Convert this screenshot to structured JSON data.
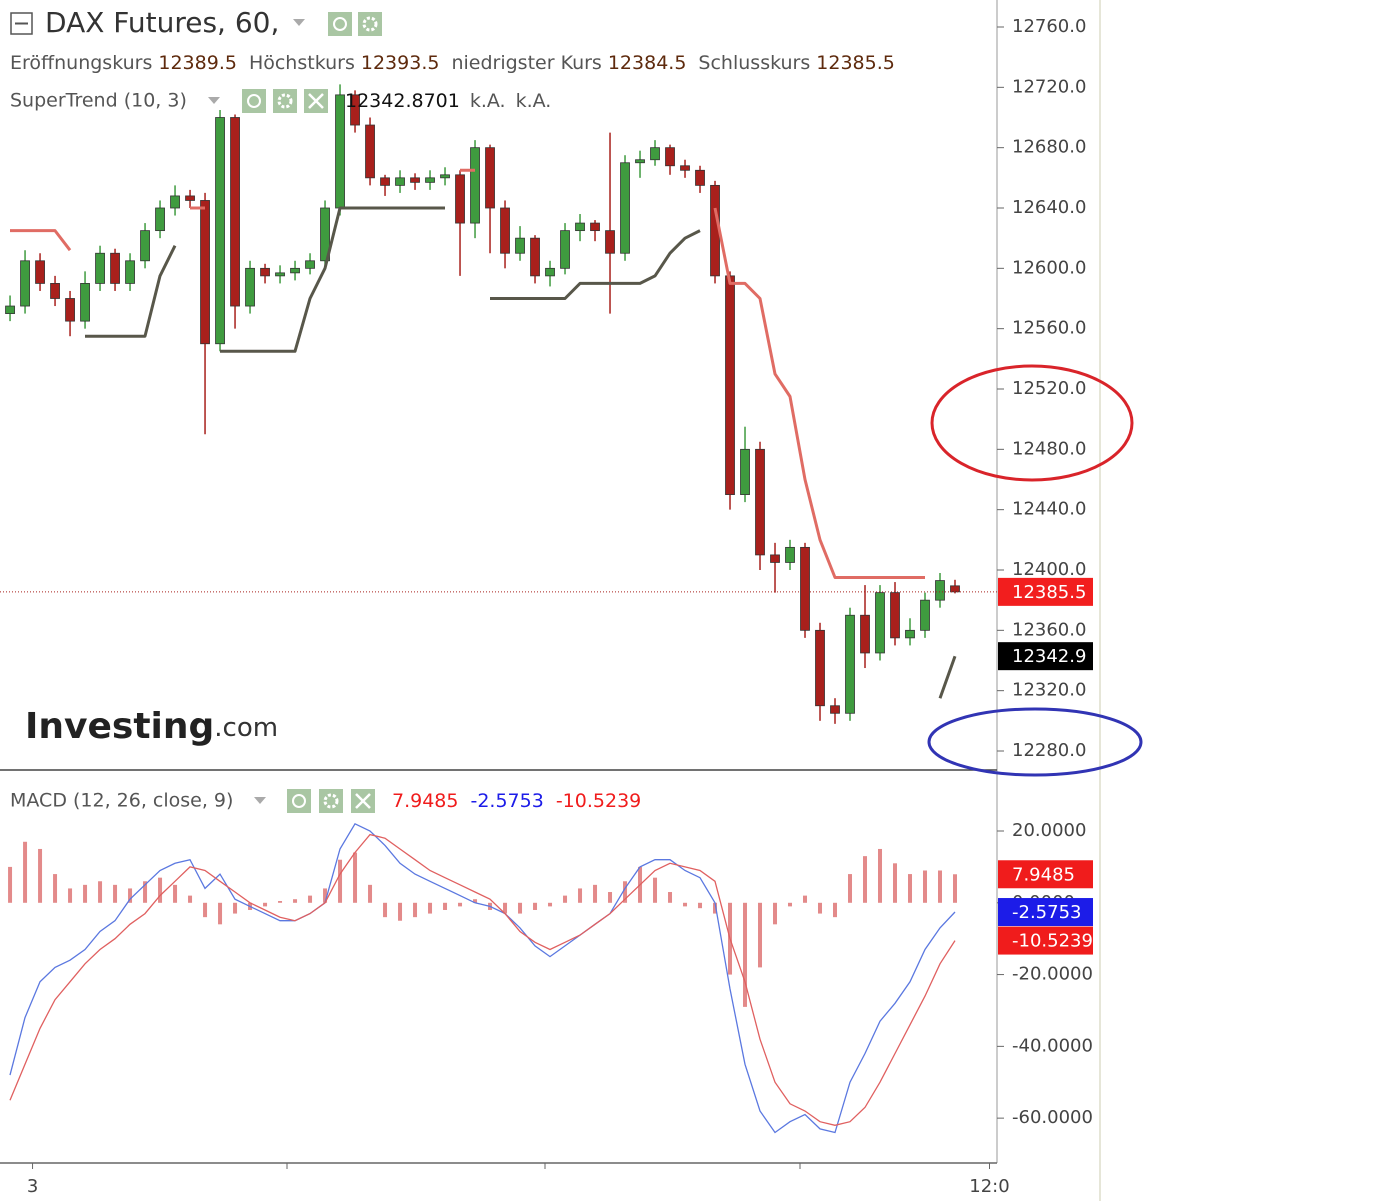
{
  "chart_data": [
    {
      "type": "candlestick",
      "title": "DAX Futures, 60,",
      "ohlc_labels": [
        "Eröffnungskurs",
        "Höchstkurs",
        "niedrigster Kurs",
        "Schlusskurs"
      ],
      "indicator": {
        "name": "SuperTrend (10, 3)",
        "extra": [
          "k.A.",
          "k.A."
        ]
      },
      "watermark": [
        "Investing",
        ".com"
      ],
      "categories": [
        null,
        null,
        null,
        null,
        null,
        null,
        null,
        null,
        null,
        null,
        null,
        null,
        null,
        null,
        null,
        null,
        null,
        null,
        null,
        null,
        null,
        null,
        null,
        null,
        null,
        null,
        null,
        null,
        null,
        null,
        null,
        null,
        null,
        null,
        null,
        null,
        null,
        null,
        null,
        null,
        null,
        null,
        null,
        null,
        null,
        null,
        null,
        null,
        null,
        null,
        null,
        null,
        null,
        null,
        null,
        null,
        null,
        null,
        null,
        null,
        null,
        null,
        null,
        null
      ],
      "open": [
        12570,
        12575,
        12605,
        12590,
        12580,
        12565,
        12590,
        12610,
        12590,
        12605,
        12625,
        12640,
        12648,
        12645,
        12550,
        12700,
        12575,
        12600,
        12595,
        12597,
        12600,
        12605,
        12640,
        12715,
        12695,
        12660,
        12655,
        12660,
        12657,
        12660,
        12662,
        12630,
        12680,
        12640,
        12610,
        12620,
        12595,
        12600,
        12625,
        12630,
        12625,
        12610,
        12670,
        12672,
        12680,
        12668,
        12665,
        12655,
        12595,
        12450,
        12480,
        12410,
        12405,
        12415,
        12360,
        12310,
        12305,
        12370,
        12345,
        12385,
        12355,
        12360,
        12380,
        12389.5
      ],
      "high": [
        12582,
        12612,
        12610,
        12595,
        12585,
        12598,
        12615,
        12613,
        12610,
        12630,
        12645,
        12655,
        12652,
        12650,
        12705,
        12702,
        12605,
        12603,
        12602,
        12605,
        12610,
        12645,
        12722,
        12718,
        12700,
        12662,
        12665,
        12663,
        12665,
        12667,
        12665,
        12685,
        12682,
        12645,
        12628,
        12622,
        12605,
        12630,
        12636,
        12632,
        12690,
        12675,
        12678,
        12685,
        12682,
        12672,
        12668,
        12658,
        12598,
        12495,
        12485,
        12418,
        12420,
        12418,
        12365,
        12315,
        12375,
        12390,
        12390,
        12392,
        12368,
        12385,
        12398,
        12393.5
      ],
      "low": [
        12565,
        12570,
        12585,
        12575,
        12555,
        12560,
        12585,
        12585,
        12585,
        12600,
        12620,
        12635,
        12640,
        12490,
        12545,
        12560,
        12570,
        12590,
        12590,
        12592,
        12596,
        12600,
        12635,
        12690,
        12655,
        12648,
        12650,
        12652,
        12652,
        12655,
        12595,
        12620,
        12610,
        12600,
        12605,
        12590,
        12588,
        12596,
        12618,
        12618,
        12570,
        12605,
        12660,
        12668,
        12662,
        12660,
        12650,
        12590,
        12440,
        12445,
        12400,
        12385,
        12400,
        12355,
        12300,
        12298,
        12300,
        12335,
        12340,
        12350,
        12350,
        12355,
        12375,
        12384.5
      ],
      "close": [
        12575,
        12605,
        12590,
        12580,
        12565,
        12590,
        12610,
        12590,
        12605,
        12625,
        12640,
        12648,
        12645,
        12550,
        12700,
        12575,
        12600,
        12595,
        12597,
        12600,
        12605,
        12640,
        12715,
        12695,
        12660,
        12655,
        12660,
        12657,
        12660,
        12662,
        12630,
        12680,
        12640,
        12610,
        12620,
        12595,
        12600,
        12625,
        12630,
        12625,
        12610,
        12670,
        12672,
        12680,
        12668,
        12665,
        12655,
        12595,
        12450,
        12480,
        12410,
        12405,
        12415,
        12360,
        12310,
        12305,
        12370,
        12345,
        12385,
        12355,
        12360,
        12380,
        12393,
        12385.5
      ],
      "up_color": "#3f9b3f",
      "down_color": "#a8201c",
      "lines": [
        {
          "color": "#e06c64",
          "values": [
            12625,
            12625,
            12625,
            12625,
            12612,
            null,
            null,
            null,
            null,
            null,
            null,
            null,
            12640,
            12640,
            null,
            null,
            null,
            null,
            null,
            null,
            null,
            null,
            null,
            null,
            null,
            null,
            null,
            null,
            null,
            null,
            12665,
            12665,
            null,
            null,
            null,
            null,
            null,
            null,
            null,
            null,
            null,
            null,
            null,
            null,
            null,
            null,
            null,
            12640,
            12590,
            12590,
            12580,
            12530,
            12515,
            12460,
            12420,
            12395,
            12395,
            12395,
            12395,
            12395,
            12395,
            12395,
            null,
            null
          ]
        },
        {
          "color": "#58574a",
          "values": [
            null,
            null,
            null,
            null,
            null,
            12555,
            12555,
            12555,
            12555,
            12555,
            12595,
            12615,
            null,
            null,
            12545,
            12545,
            12545,
            12545,
            12545,
            12545,
            12580,
            12600,
            12640,
            12640,
            12640,
            12640,
            12640,
            12640,
            12640,
            12640,
            null,
            null,
            12580,
            12580,
            12580,
            12580,
            12580,
            12580,
            12590,
            12590,
            12590,
            12590,
            12590,
            12595,
            12610,
            12620,
            12625,
            null,
            null,
            null,
            null,
            null,
            null,
            null,
            null,
            null,
            null,
            null,
            null,
            null,
            null,
            null,
            12315,
            12342.8701
          ],
          "last_value_label": "12342.9"
        }
      ],
      "xlim": [
        -0.67,
        65.8
      ],
      "ylim": [
        12267.4,
        12777.9
      ],
      "yticks": [
        {
          "value": 12760,
          "label": "12760.0"
        },
        {
          "value": 12720,
          "label": "12720.0"
        },
        {
          "value": 12680,
          "label": "12680.0"
        },
        {
          "value": 12640,
          "label": "12640.0"
        },
        {
          "value": 12600,
          "label": "12600.0"
        },
        {
          "value": 12560,
          "label": "12560.0"
        },
        {
          "value": 12520,
          "label": "12520.0"
        },
        {
          "value": 12480,
          "label": "12480.0"
        },
        {
          "value": 12440,
          "label": "12440.0"
        },
        {
          "value": 12400,
          "label": "12400.0"
        },
        {
          "value": 12360,
          "label": "12360.0"
        },
        {
          "value": 12320,
          "label": "12320.0"
        },
        {
          "value": 12280,
          "label": "12280.0"
        }
      ],
      "grid": false
    },
    {
      "type": "macd",
      "title": "MACD (12, 26, close, 9)",
      "categories": [
        null,
        null,
        null,
        null,
        null,
        null,
        null,
        null,
        null,
        null,
        null,
        null,
        null,
        null,
        null,
        null,
        null,
        null,
        null,
        null,
        null,
        null,
        null,
        null,
        null,
        null,
        null,
        null,
        null,
        null,
        null,
        null,
        null,
        null,
        null,
        null,
        null,
        null,
        null,
        null,
        null,
        null,
        null,
        null,
        null,
        null,
        null,
        null,
        null,
        null,
        null,
        null,
        null,
        null,
        null,
        null,
        null,
        null,
        null,
        null,
        null,
        null,
        null,
        null
      ],
      "histogram": {
        "color": "#e38a8a",
        "label_color": "#f01c1c",
        "values": [
          10,
          17,
          15,
          8,
          4,
          5,
          6,
          5,
          4,
          6,
          7,
          5,
          2,
          -4,
          -6,
          -3,
          -2,
          -1,
          0.5,
          1,
          2,
          4,
          12,
          14,
          5,
          -4,
          -5,
          -4,
          -3,
          -2,
          -1,
          1,
          -2,
          -3,
          -3,
          -2,
          -1,
          2,
          4,
          5,
          3,
          6,
          10,
          7,
          3,
          -1,
          -1.5,
          -3,
          -20,
          -29,
          -18,
          -6,
          -1,
          2,
          -3,
          -4,
          8,
          13,
          15,
          11,
          8,
          9,
          9,
          7.9485
        ]
      },
      "series": [
        {
          "color": "#5b78e0",
          "label_color": "#1c1ce8",
          "values": [
            -48,
            -32,
            -22,
            -18,
            -16,
            -13,
            -8,
            -5,
            1,
            5,
            9,
            11,
            12,
            4,
            8,
            1,
            -1,
            -3,
            -5,
            -5,
            -3,
            0,
            15,
            22,
            20,
            16,
            11,
            8,
            6,
            4,
            2,
            0,
            -1,
            -3,
            -7,
            -12,
            -15,
            -12,
            -9,
            -6,
            -3,
            4,
            10,
            12,
            12,
            9,
            7,
            0,
            -24,
            -45,
            -58,
            -64,
            -61,
            -59,
            -63,
            -64,
            -50,
            -42,
            -33,
            -28,
            -22,
            -13,
            -7,
            -2.5753
          ]
        },
        {
          "color": "#e06060",
          "label_color": "#f01c1c",
          "values": [
            -55,
            -45,
            -35,
            -27,
            -22,
            -17,
            -13,
            -10,
            -6,
            -3,
            2,
            6,
            10,
            9,
            6,
            3,
            0,
            -2,
            -4,
            -5,
            -3,
            0,
            8,
            14,
            19,
            18,
            15,
            12,
            9,
            7,
            5,
            3,
            1,
            -3,
            -8,
            -11,
            -13,
            -11,
            -9,
            -6,
            -3,
            1,
            5,
            9,
            11,
            10,
            9,
            6,
            -10,
            -22,
            -38,
            -50,
            -56,
            -58,
            -61,
            -62,
            -61,
            -57,
            -50,
            -42,
            -34,
            -26,
            -17,
            -10.5239
          ]
        }
      ],
      "xlim": [
        -0.67,
        65.8
      ],
      "xticks": [
        {
          "value": 1.5,
          "label": "3"
        },
        {
          "value": 65.3,
          "label": "12:0"
        }
      ],
      "ylim": [
        -72.5,
        37
      ],
      "yticks": [
        {
          "value": 20,
          "label": "20.0000"
        },
        {
          "value": 0,
          "label": "0.0000"
        },
        {
          "value": -20,
          "label": "-20.0000"
        },
        {
          "value": -40,
          "label": "-40.0000"
        },
        {
          "value": -60,
          "label": "-60.0000"
        }
      ],
      "grid": false
    }
  ]
}
